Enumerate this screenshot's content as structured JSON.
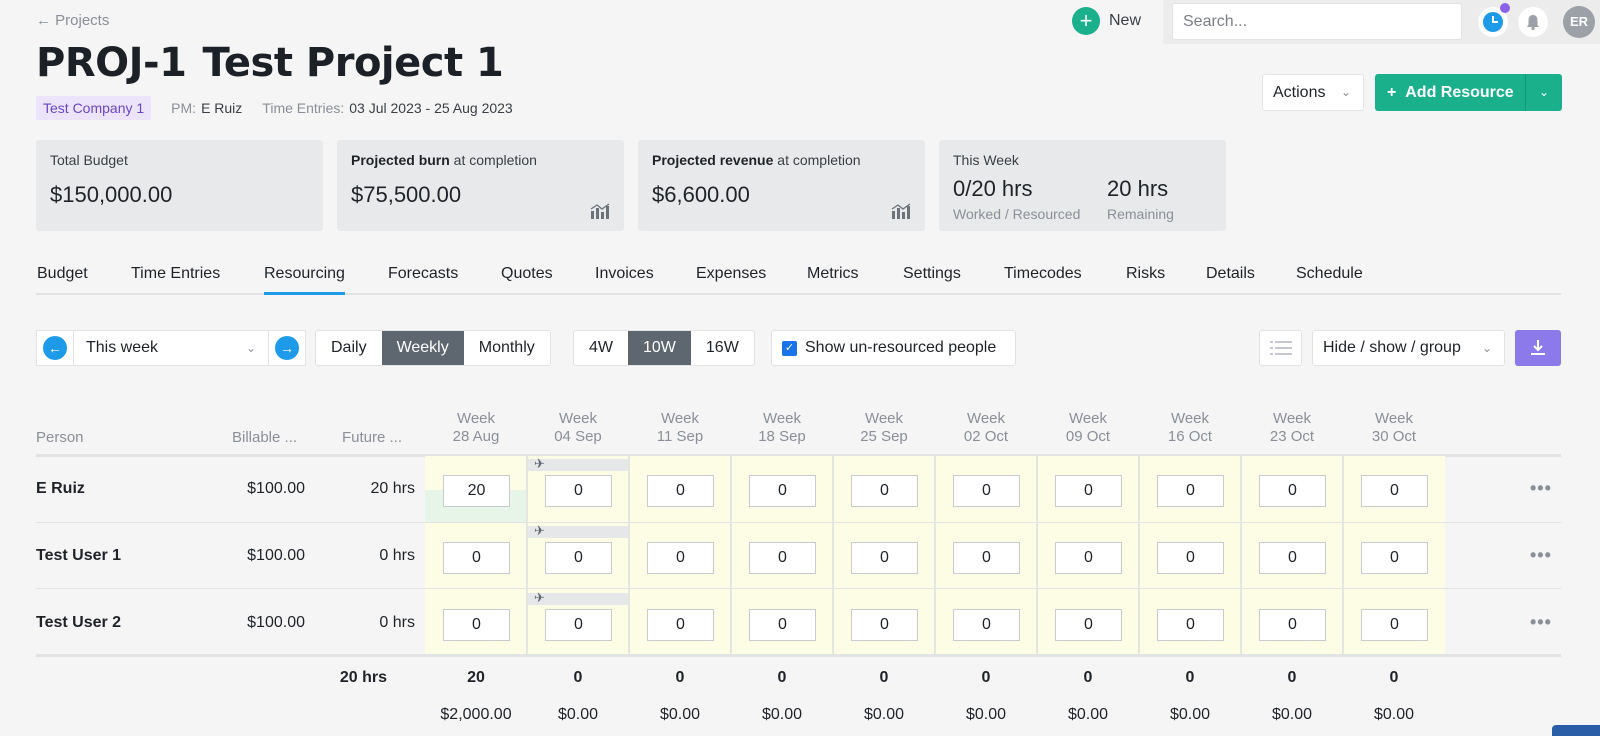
{
  "header": {
    "back_label": "← Projects",
    "new_label": "New",
    "search_placeholder": "Search...",
    "avatar_initials": "ER"
  },
  "project": {
    "code": "PROJ-1",
    "name": "Test Project 1",
    "company": "Test Company 1",
    "pm_label": "PM:",
    "pm_value": "E Ruiz",
    "time_entries_label": "Time Entries:",
    "time_entries_value": "03 Jul 2023 - 25 Aug 2023"
  },
  "buttons": {
    "actions": "Actions",
    "add_resource": "Add Resource"
  },
  "cards": {
    "total_budget_label": "Total Budget",
    "total_budget_value": "$150,000.00",
    "burn_label_bold": "Projected burn",
    "burn_label_rest": " at completion",
    "burn_value": "$75,500.00",
    "revenue_label_bold": "Projected revenue",
    "revenue_label_rest": " at completion",
    "revenue_value": "$6,600.00",
    "week_label": "This Week",
    "worked_value": "0/20 hrs",
    "worked_sub": "Worked / Resourced",
    "remaining_value": "20 hrs",
    "remaining_sub": "Remaining"
  },
  "tabs": [
    "Budget",
    "Time Entries",
    "Resourcing",
    "Forecasts",
    "Quotes",
    "Invoices",
    "Expenses",
    "Metrics",
    "Settings",
    "Timecodes",
    "Risks",
    "Details",
    "Schedule"
  ],
  "active_tab": "Resourcing",
  "toolbar": {
    "period": "This week",
    "granularity": [
      "Daily",
      "Weekly",
      "Monthly"
    ],
    "granularity_selected": "Weekly",
    "span": [
      "4W",
      "10W",
      "16W"
    ],
    "span_selected": "10W",
    "show_unresourced": "Show un-resourced people",
    "show_unresourced_checked": true,
    "hide_show_group": "Hide / show / group"
  },
  "grid": {
    "col_person": "Person",
    "col_billable": "Billable ...",
    "col_future": "Future ...",
    "week_prefix": "Week",
    "weeks": [
      "28 Aug",
      "04 Sep",
      "11 Sep",
      "18 Sep",
      "25 Sep",
      "02 Oct",
      "09 Oct",
      "16 Oct",
      "23 Oct",
      "30 Oct"
    ],
    "rows": [
      {
        "name": "E Ruiz",
        "rate": "$100.00",
        "future": "20 hrs",
        "values": [
          "20",
          "0",
          "0",
          "0",
          "0",
          "0",
          "0",
          "0",
          "0",
          "0"
        ]
      },
      {
        "name": "Test User 1",
        "rate": "$100.00",
        "future": "0 hrs",
        "values": [
          "0",
          "0",
          "0",
          "0",
          "0",
          "0",
          "0",
          "0",
          "0",
          "0"
        ]
      },
      {
        "name": "Test User 2",
        "rate": "$100.00",
        "future": "0 hrs",
        "values": [
          "0",
          "0",
          "0",
          "0",
          "0",
          "0",
          "0",
          "0",
          "0",
          "0"
        ]
      }
    ],
    "total_future": "20 hrs",
    "total_hours": [
      "20",
      "0",
      "0",
      "0",
      "0",
      "0",
      "0",
      "0",
      "0",
      "0"
    ],
    "total_money": [
      "$2,000.00",
      "$0.00",
      "$0.00",
      "$0.00",
      "$0.00",
      "$0.00",
      "$0.00",
      "$0.00",
      "$0.00",
      "$0.00"
    ]
  },
  "colors": {
    "accent_green": "#1bb08c",
    "accent_blue": "#1e9be8",
    "accent_purple": "#8c79ea",
    "cell_yellow": "#fdfde5"
  }
}
